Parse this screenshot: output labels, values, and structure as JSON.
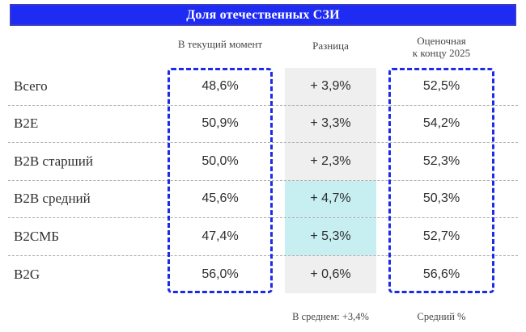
{
  "title": "Доля отечественных СЗИ",
  "columns": {
    "current": "В текущий момент",
    "diff": "Разница",
    "estimate_line1": "Оценочная",
    "estimate_line2": "к концу 2025"
  },
  "rows": [
    {
      "label": "Всего",
      "current": "48,6%",
      "diff": "+ 3,9%",
      "estimate": "52,5%",
      "diff_highlight": false
    },
    {
      "label": "B2E",
      "current": "50,9%",
      "diff": "+ 3,3%",
      "estimate": "54,2%",
      "diff_highlight": false
    },
    {
      "label": "B2B старший",
      "current": "50,0%",
      "diff": "+ 2,3%",
      "estimate": "52,3%",
      "diff_highlight": false
    },
    {
      "label": "B2B средний",
      "current": "45,6%",
      "diff": "+ 4,7%",
      "estimate": "50,3%",
      "diff_highlight": true
    },
    {
      "label": "B2СМБ",
      "current": "47,4%",
      "diff": "+ 5,3%",
      "estimate": "52,7%",
      "diff_highlight": true
    },
    {
      "label": "B2G",
      "current": "56,0%",
      "diff": "+ 0,6%",
      "estimate": "56,6%",
      "diff_highlight": false
    }
  ],
  "footer": {
    "diff_average": "В среднем: +3,4%",
    "estimate_note": "Средний %"
  },
  "colors": {
    "title_bar_fill": "#1E2BF3",
    "title_bar_border": "#3A3AC8",
    "dashed_box_blue": "#1C2AE9",
    "diff_column_gray": "#EFEFEF",
    "diff_highlight_cyan": "#C7EFF2",
    "row_separator": "#ADADAD",
    "text": "#2E2E2E"
  },
  "chart_data": {
    "type": "table",
    "title": "Доля отечественных СЗИ",
    "categories": [
      "Всего",
      "B2E",
      "B2B старший",
      "B2B средний",
      "B2СМБ",
      "B2G"
    ],
    "series": [
      {
        "name": "В текущий момент",
        "values": [
          48.6,
          50.9,
          50.0,
          45.6,
          47.4,
          56.0
        ]
      },
      {
        "name": "Разница",
        "values": [
          3.9,
          3.3,
          2.3,
          4.7,
          5.3,
          0.6
        ]
      },
      {
        "name": "Оценочная к концу 2025",
        "values": [
          52.5,
          54.2,
          52.3,
          50.3,
          52.7,
          56.6
        ]
      }
    ],
    "units": "%",
    "highlighted_diff_rows": [
      "B2B средний",
      "B2СМБ"
    ],
    "annotations": {
      "diff_average": "В среднем: +3,4%",
      "estimate_note": "Средний %"
    },
    "legend_position": "none",
    "grid": "dashed horizontal row separators"
  }
}
